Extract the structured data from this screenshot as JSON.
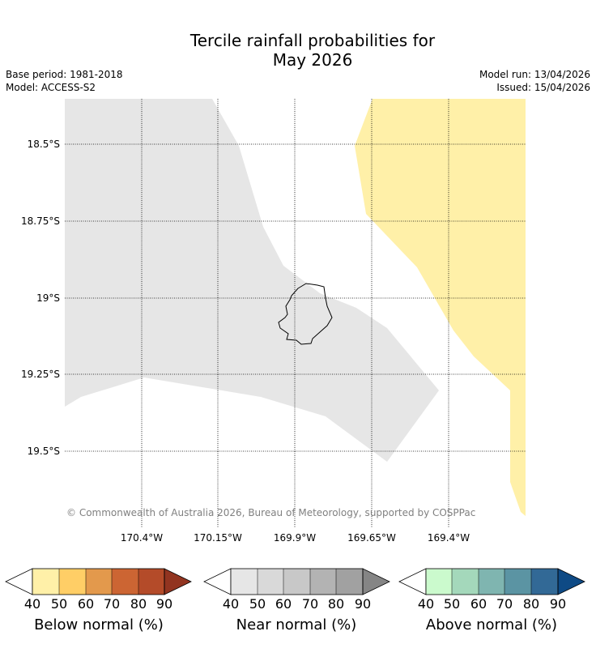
{
  "title_line1": "Tercile rainfall probabilities for",
  "title_line2": "May 2026",
  "base_period": "Base period: 1981-2018",
  "model": "Model: ACCESS-S2",
  "model_run": "Model run: 13/04/2026",
  "issued": "Issued: 15/04/2026",
  "copyright": "© Commonwealth of Australia 2026, Bureau of Meteorology, supported by COSPPac",
  "lat_labels": [
    "18.5°S",
    "18.75°S",
    "19°S",
    "19.25°S",
    "19.5°S"
  ],
  "lon_labels": [
    "170.4°W",
    "170.15°W",
    "169.9°W",
    "169.65°W",
    "169.4°W"
  ],
  "colors": {
    "below": [
      "#fff0a8",
      "#ffce66",
      "#e3994c",
      "#cc6533",
      "#b44b29",
      "#923420"
    ],
    "near": [
      "#e6e6e6",
      "#d9d9d9",
      "#c8c8c8",
      "#b3b3b3",
      "#a1a1a1",
      "#858585"
    ],
    "above": [
      "#cbfacd",
      "#a4d8bb",
      "#7fb5b0",
      "#5b94a3",
      "#326996",
      "#0e4a85"
    ]
  },
  "legends": {
    "ticks": [
      "40",
      "50",
      "60",
      "70",
      "80",
      "90"
    ],
    "below_label": "Below normal (%)",
    "near_label": "Near normal (%)",
    "above_label": "Above normal (%)"
  }
}
